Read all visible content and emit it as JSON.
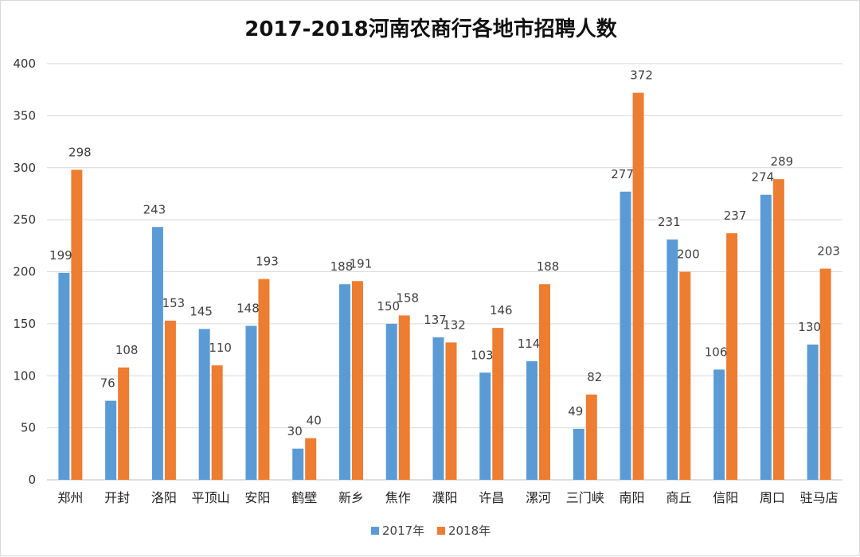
{
  "chart_data": {
    "type": "bar",
    "title": "2017-2018河南农商行各地市招聘人数",
    "xlabel": "",
    "ylabel": "",
    "ylim": [
      0,
      400
    ],
    "yticks": [
      0,
      50,
      100,
      150,
      200,
      250,
      300,
      350,
      400
    ],
    "grid": true,
    "legend_position": "bottom",
    "categories": [
      "郑州",
      "开封",
      "洛阳",
      "平顶山",
      "安阳",
      "鹤壁",
      "新乡",
      "焦作",
      "濮阳",
      "许昌",
      "漯河",
      "三门峡",
      "南阳",
      "商丘",
      "信阳",
      "周口",
      "驻马店"
    ],
    "series": [
      {
        "name": "2017年",
        "color": "#5b9bd5",
        "values": [
          199,
          76,
          243,
          145,
          148,
          30,
          188,
          150,
          137,
          103,
          114,
          49,
          277,
          231,
          106,
          274,
          130
        ]
      },
      {
        "name": "2018年",
        "color": "#ed7d31",
        "values": [
          298,
          108,
          153,
          110,
          193,
          40,
          191,
          158,
          132,
          146,
          188,
          82,
          372,
          200,
          237,
          289,
          203
        ]
      }
    ]
  }
}
